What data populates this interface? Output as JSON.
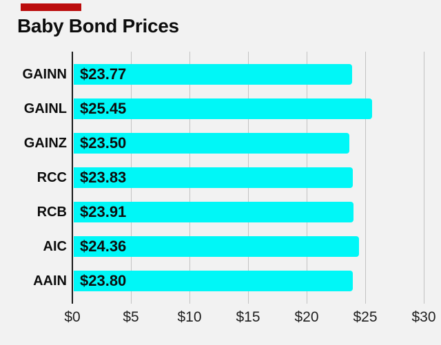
{
  "chart_data": {
    "type": "bar",
    "orientation": "horizontal",
    "title": "Baby Bond Prices",
    "categories": [
      "GAINN",
      "GAINL",
      "GAINZ",
      "RCC",
      "RCB",
      "AIC",
      "AAIN"
    ],
    "values": [
      23.77,
      25.45,
      23.5,
      23.83,
      23.91,
      24.36,
      23.8
    ],
    "bar_labels": [
      "$23.77",
      "$25.45",
      "$23.50",
      "$23.83",
      "$23.91",
      "$24.36",
      "$23.80"
    ],
    "x_ticks": [
      {
        "value": 0,
        "label": "$0"
      },
      {
        "value": 5,
        "label": "$5"
      },
      {
        "value": 10,
        "label": "$10"
      },
      {
        "value": 15,
        "label": "$15"
      },
      {
        "value": 20,
        "label": "$20"
      },
      {
        "value": 25,
        "label": "$25"
      },
      {
        "value": 30,
        "label": "$30"
      }
    ],
    "xlim": [
      0,
      30
    ],
    "xlabel": "",
    "ylabel": "",
    "grid": true,
    "legend": false
  },
  "colors": {
    "background": "#f2f2f2",
    "bar": "#00f7f7",
    "gridline": "#c2c2c2",
    "axis_line": "#161616",
    "title_text": "#0d0d0d",
    "label_text": "#0d0d0d",
    "tick_text": "#1f1f1f",
    "red_marker": "#bb0c0c"
  },
  "decorations": {
    "red_marker_present": true
  }
}
